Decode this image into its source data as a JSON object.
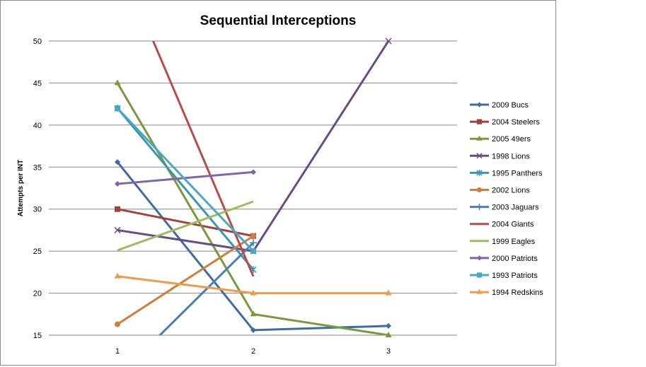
{
  "chart_data": {
    "type": "line",
    "title": "Sequential Interceptions",
    "ylabel": "Attempts per INT",
    "xlabel": "",
    "x": [
      1,
      2,
      3
    ],
    "ylim": [
      15,
      50
    ],
    "yticks": [
      15,
      20,
      25,
      30,
      35,
      40,
      45,
      50
    ],
    "grid": "horizontal",
    "legend_position": "right",
    "series": [
      {
        "name": "2009 Bucs",
        "color": "#3f6aa4",
        "marker": "diamond",
        "values": [
          35.6,
          15.6,
          16.1
        ]
      },
      {
        "name": "2004 Steelers",
        "color": "#a4413c",
        "marker": "square",
        "values": [
          30.0,
          26.8,
          null
        ]
      },
      {
        "name": "2005 49ers",
        "color": "#79993a",
        "marker": "triangle",
        "values": [
          45.0,
          17.5,
          15.0
        ]
      },
      {
        "name": "1998 Lions",
        "color": "#664d87",
        "marker": "x",
        "values": [
          27.5,
          25.0,
          50.0
        ]
      },
      {
        "name": "1995 Panthers",
        "color": "#3a96ab",
        "marker": "star",
        "values": [
          42.0,
          22.8,
          null
        ]
      },
      {
        "name": "2002 Lions",
        "color": "#d07d3a",
        "marker": "circle",
        "values": [
          16.3,
          26.8,
          null
        ]
      },
      {
        "name": "2003 Jaguars",
        "color": "#4a7fb5",
        "marker": "plus",
        "values": [
          10.0,
          26.0,
          null
        ]
      },
      {
        "name": "2004 Giants",
        "color": "#b94c4a",
        "marker": "none",
        "values": [
          60.0,
          22.0,
          null
        ]
      },
      {
        "name": "1999 Eagles",
        "color": "#9dbd5f",
        "marker": "none",
        "values": [
          25.1,
          30.9,
          null
        ]
      },
      {
        "name": "2000 Patriots",
        "color": "#8066a6",
        "marker": "diamond",
        "values": [
          33.0,
          34.4,
          null
        ]
      },
      {
        "name": "1993 Patriots",
        "color": "#4ba8c4",
        "marker": "square",
        "values": [
          42.0,
          25.0,
          null
        ]
      },
      {
        "name": "1994 Redskins",
        "color": "#f09a4c",
        "marker": "triangle",
        "values": [
          22.0,
          20.0,
          20.0
        ]
      }
    ]
  }
}
